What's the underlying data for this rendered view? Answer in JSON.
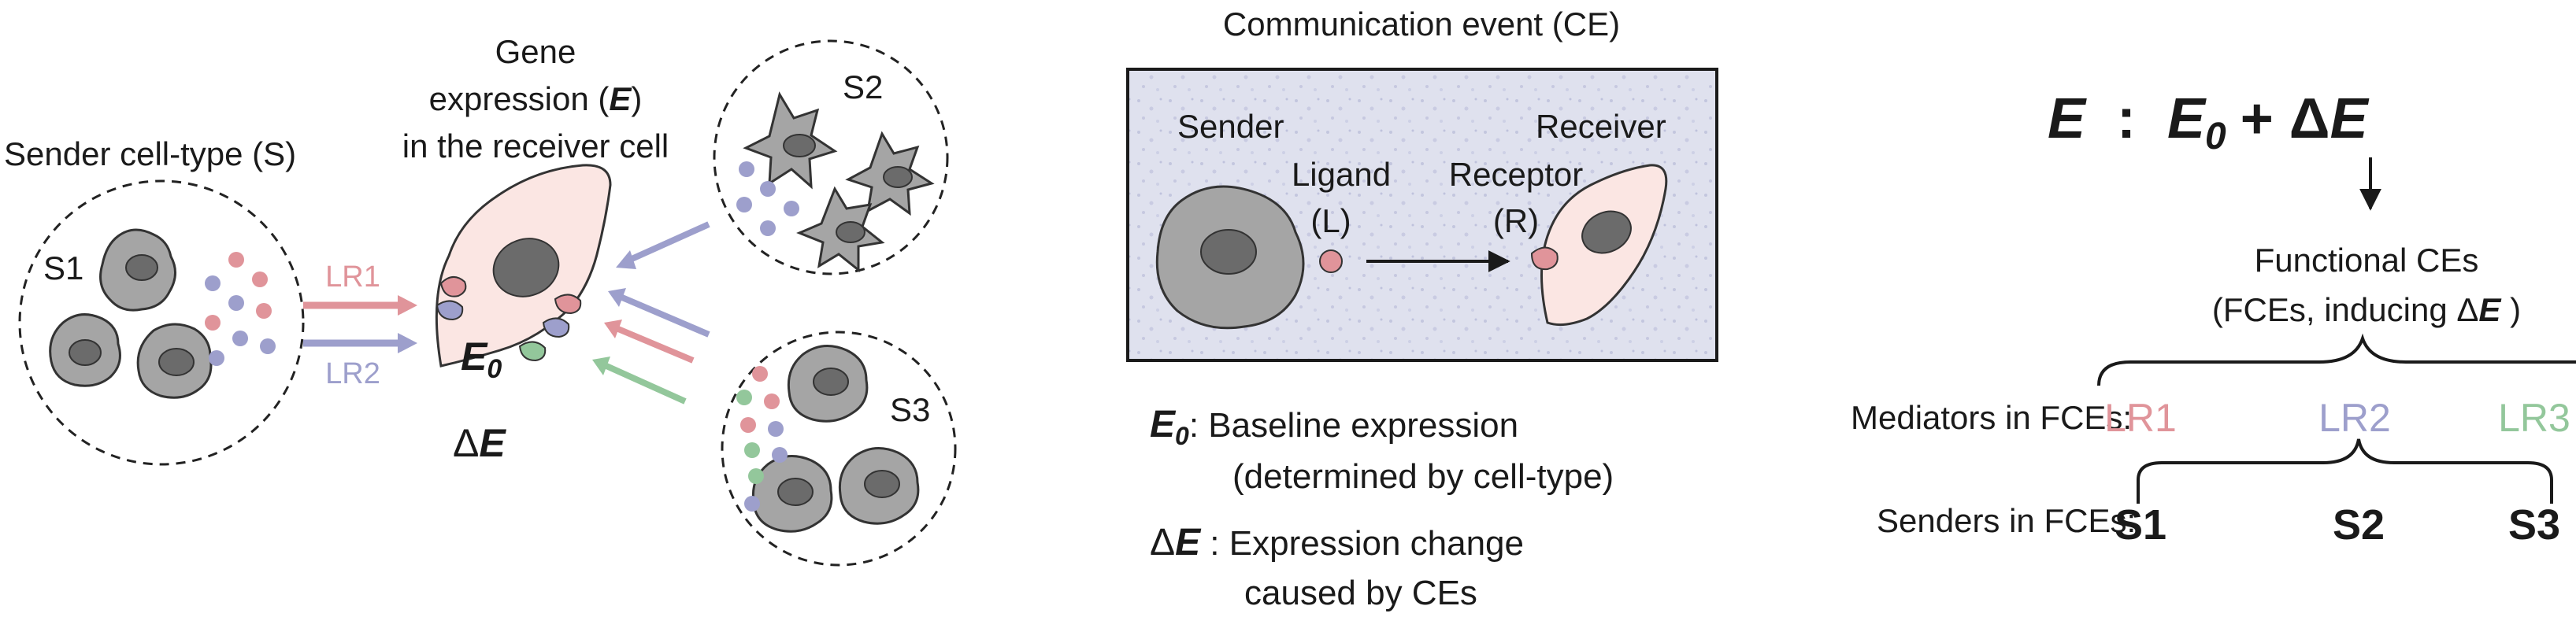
{
  "left_panel": {
    "sender_title": "Sender cell-type (S)",
    "gene_line1": "Gene",
    "gene_line2_pre": "expression (",
    "gene_line2_var": "E",
    "gene_line2_post": ")",
    "gene_line3": "in the receiver cell",
    "s1": "S1",
    "s2": "S2",
    "s3": "S3",
    "lr1": "LR1",
    "lr2": "LR2",
    "e0_var": "E",
    "e0_sub": "0",
    "delta_e_sym": "Δ",
    "delta_e_var": "E"
  },
  "middle_panel": {
    "title": "Communication event (CE)",
    "sender": "Sender",
    "receiver": "Receiver",
    "ligand": "Ligand",
    "ligand_abbr": "(L)",
    "receptor": "Receptor",
    "receptor_abbr": "(R)",
    "def1_var": "E",
    "def1_sub": "0",
    "def1_line1": ": Baseline expression",
    "def1_line2": "(determined by cell-type)",
    "def2_sym": "Δ",
    "def2_var": "E",
    "def2_line1": " : Expression change",
    "def2_line2": "caused by CEs"
  },
  "right_panel": {
    "eq_e": "E",
    "eq_colon": ":",
    "eq_e0": "E",
    "eq_e0_sub": "0",
    "eq_plus": "+ Δ",
    "eq_de": "E",
    "fce_line1": "Functional CEs",
    "fce_line2_pre": "(FCEs, inducing Δ",
    "fce_line2_var": "E",
    "fce_line2_post": " )",
    "mediators_label": "Mediators in FCEs:",
    "mediators": [
      "LR1",
      "LR2",
      "LR3"
    ],
    "senders_label": "Senders in FCEs:",
    "senders": [
      "S1",
      "S2",
      "S3"
    ]
  },
  "colors": {
    "lr1": "#e0949a",
    "lr2": "#9d9fcc",
    "lr3": "#93c79b",
    "receiver_fill": "#fbe6e3",
    "tissue": "#d9dcec"
  }
}
